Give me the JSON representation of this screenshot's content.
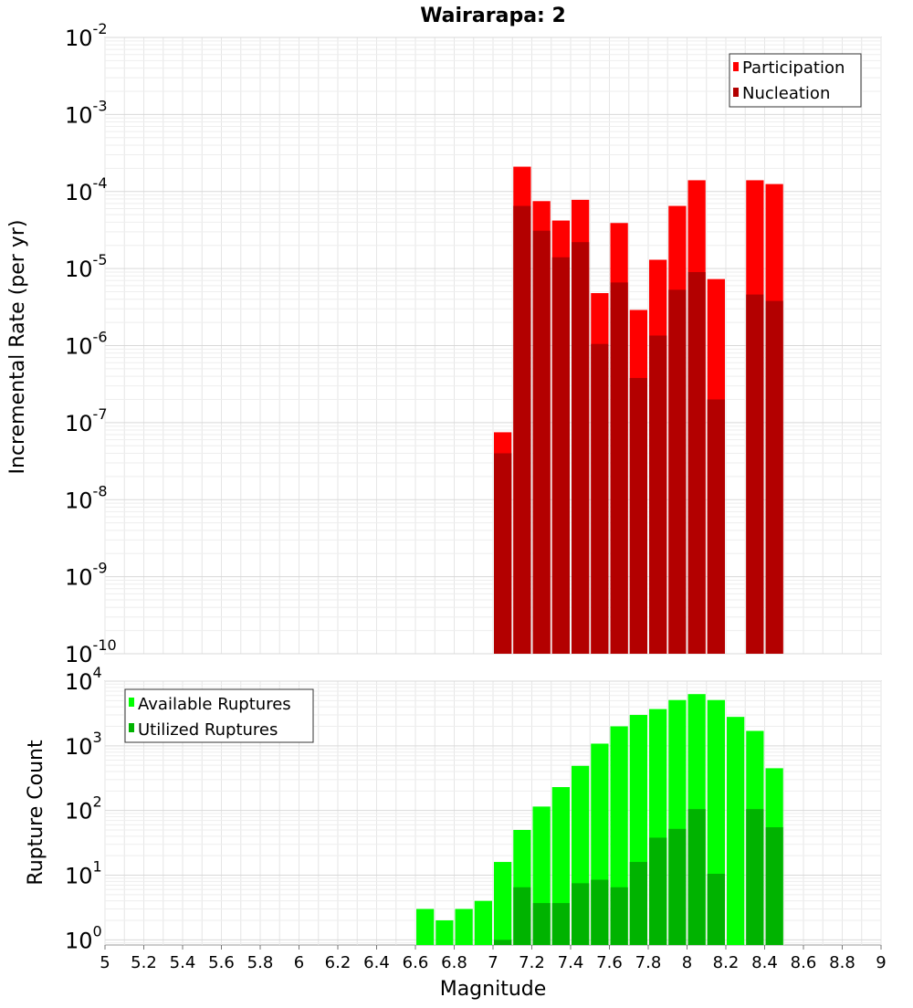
{
  "chart_data": [
    {
      "type": "bar",
      "title": "Wairarapa: 2",
      "ylabel": "Incremental Rate (per yr)",
      "xlabel": "",
      "yscale": "log",
      "ylim_exponents": [
        -10,
        -2
      ],
      "xlim": [
        5,
        9
      ],
      "bar_width": 0.1,
      "legend": {
        "position": "top-right",
        "entries": [
          "Participation",
          "Nucleation"
        ]
      },
      "x": [
        7.0,
        7.1,
        7.2,
        7.3,
        7.4,
        7.5,
        7.6,
        7.7,
        7.8,
        7.9,
        8.0,
        8.1,
        8.3,
        8.4
      ],
      "series": [
        {
          "name": "Participation",
          "color": "#ff0000",
          "values": [
            7.5e-08,
            0.00021,
            7.5e-05,
            4.2e-05,
            7.8e-05,
            4.8e-06,
            3.9e-05,
            2.9e-06,
            1.3e-05,
            6.5e-05,
            0.00014,
            7.3e-06,
            0.00014,
            0.000125
          ]
        },
        {
          "name": "Nucleation",
          "color": "#b30000",
          "values": [
            4e-08,
            6.5e-05,
            3.1e-05,
            1.4e-05,
            2.2e-05,
            1.05e-06,
            6.6e-06,
            3.8e-07,
            1.35e-06,
            5.3e-06,
            9e-06,
            2e-07,
            4.6e-06,
            3.8e-06
          ]
        }
      ],
      "y_ticks": [
        {
          "base": "10",
          "exp": "-2"
        },
        {
          "base": "10",
          "exp": "-3"
        },
        {
          "base": "10",
          "exp": "-4"
        },
        {
          "base": "10",
          "exp": "-5"
        },
        {
          "base": "10",
          "exp": "-6"
        },
        {
          "base": "10",
          "exp": "-7"
        },
        {
          "base": "10",
          "exp": "-8"
        },
        {
          "base": "10",
          "exp": "-9"
        },
        {
          "base": "10",
          "exp": "-10"
        }
      ]
    },
    {
      "type": "bar",
      "title": "",
      "ylabel": "Rupture Count",
      "xlabel": "Magnitude",
      "yscale": "log",
      "ylim_exponents": [
        -0.08,
        4
      ],
      "xlim": [
        5,
        9
      ],
      "bar_width": 0.1,
      "legend": {
        "position": "top-left",
        "entries": [
          "Available Ruptures",
          "Utilized Ruptures"
        ]
      },
      "x": [
        6.6,
        6.7,
        6.8,
        6.9,
        7.0,
        7.1,
        7.2,
        7.3,
        7.4,
        7.5,
        7.6,
        7.7,
        7.8,
        7.9,
        8.0,
        8.1,
        8.2,
        8.3,
        8.4
      ],
      "series": [
        {
          "name": "Available Ruptures",
          "color": "#00ff00",
          "values": [
            3,
            2,
            3,
            4,
            16,
            50,
            115,
            230,
            490,
            1080,
            2000,
            3000,
            3700,
            5100,
            6300,
            5100,
            2800,
            1700,
            450
          ]
        },
        {
          "name": "Utilized Ruptures",
          "color": "#00b300",
          "values": [
            0,
            0,
            0,
            0,
            1,
            6.5,
            3.7,
            3.7,
            7.5,
            8.5,
            6.5,
            16,
            38,
            52,
            105,
            10.5,
            0,
            105,
            55
          ]
        }
      ],
      "y_ticks": [
        {
          "base": "10",
          "exp": "4"
        },
        {
          "base": "10",
          "exp": "3"
        },
        {
          "base": "10",
          "exp": "2"
        },
        {
          "base": "10",
          "exp": "1"
        },
        {
          "base": "10",
          "exp": "0"
        }
      ],
      "x_ticks": [
        "5",
        "5.2",
        "5.4",
        "5.6",
        "5.8",
        "6",
        "6.2",
        "6.4",
        "6.6",
        "6.8",
        "7",
        "7.2",
        "7.4",
        "7.6",
        "7.8",
        "8",
        "8.2",
        "8.4",
        "8.6",
        "8.8",
        "9"
      ]
    }
  ]
}
